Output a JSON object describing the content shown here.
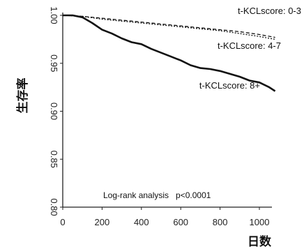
{
  "chart_data": {
    "type": "line",
    "xlabel": "日数",
    "ylabel": "生存率",
    "xlim": [
      0,
      1080
    ],
    "ylim": [
      0.8,
      1.0
    ],
    "xticks": [
      0,
      200,
      400,
      600,
      800,
      1000
    ],
    "yticks": [
      "0.80",
      "0.85",
      "0.90",
      "0.95",
      "1.00"
    ],
    "grid": false,
    "annotation": "Log-rank analysis   p<0.0001",
    "series": [
      {
        "name": "t-KCLscore: 0-3",
        "style": "dashed",
        "x": [
          0,
          100,
          200,
          300,
          400,
          500,
          600,
          700,
          800,
          900,
          1000,
          1080
        ],
        "y": [
          1.0,
          0.999,
          0.997,
          0.995,
          0.993,
          0.991,
          0.989,
          0.987,
          0.985,
          0.983,
          0.98,
          0.977
        ]
      },
      {
        "name": "t-KCLscore: 4-7",
        "style": "dotted",
        "x": [
          0,
          100,
          200,
          300,
          400,
          500,
          600,
          700,
          800,
          900,
          1000,
          1080
        ],
        "y": [
          1.0,
          0.999,
          0.996,
          0.994,
          0.992,
          0.99,
          0.988,
          0.986,
          0.984,
          0.981,
          0.978,
          0.975
        ]
      },
      {
        "name": "t-KCLscore: 8+",
        "style": "solid",
        "x": [
          0,
          50,
          100,
          150,
          200,
          250,
          300,
          350,
          400,
          450,
          500,
          550,
          600,
          650,
          700,
          750,
          800,
          850,
          900,
          950,
          1000,
          1050,
          1080
        ],
        "y": [
          1.0,
          1.0,
          0.998,
          0.992,
          0.985,
          0.981,
          0.976,
          0.972,
          0.97,
          0.965,
          0.961,
          0.957,
          0.953,
          0.948,
          0.945,
          0.944,
          0.942,
          0.939,
          0.936,
          0.932,
          0.93,
          0.925,
          0.921
        ]
      }
    ]
  }
}
